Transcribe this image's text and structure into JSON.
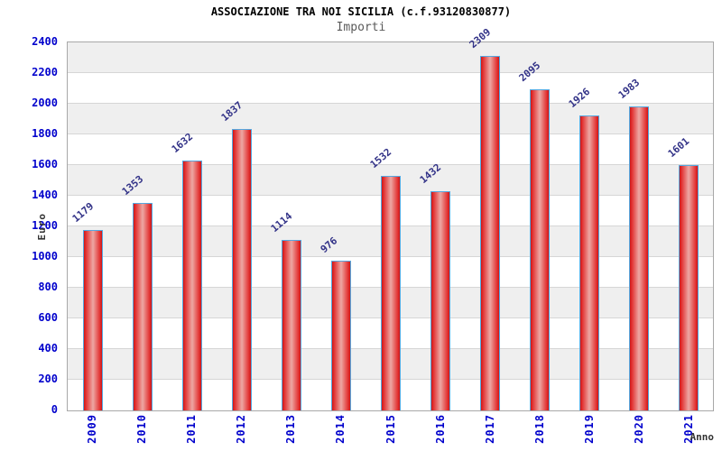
{
  "chart_data": {
    "type": "bar",
    "title": "ASSOCIAZIONE TRA NOI SICILIA (c.f.93120830877)",
    "subtitle": "Importi",
    "ylabel": "Euro",
    "xlabel": "Anno",
    "categories": [
      "2009",
      "2010",
      "2011",
      "2012",
      "2013",
      "2014",
      "2015",
      "2016",
      "2017",
      "2018",
      "2019",
      "2020",
      "2021"
    ],
    "values": [
      1179,
      1353,
      1632,
      1837,
      1114,
      976,
      1532,
      1432,
      2309,
      2095,
      1926,
      1983,
      1601
    ],
    "ylim": [
      0,
      2400
    ],
    "ytick_step": 200,
    "yticks": [
      0,
      200,
      400,
      600,
      800,
      1000,
      1200,
      1400,
      1600,
      1800,
      2000,
      2200,
      2400
    ],
    "grid": true,
    "legend_position": "none",
    "band_pattern": "alternating gray/white every 200 units, gray at top (2400-2200)",
    "colors": {
      "title": "#000000",
      "subtitle": "#5a5a5a",
      "tick_label": "#0000cc",
      "value_label": "#333388",
      "axis_title": "#333333",
      "bar_edge": "#cf1616",
      "bar_mid": "#eda8a4",
      "bar_border": "#55a8e0",
      "band_gray": "#efefef",
      "band_white": "#ffffff",
      "grid_line": "#d6d6d6",
      "plot_border": "#a8a8a8"
    }
  }
}
